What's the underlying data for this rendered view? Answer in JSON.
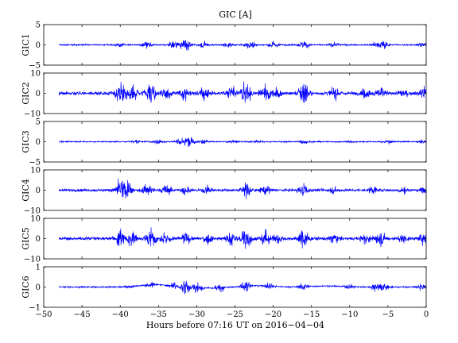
{
  "chart_data": {
    "type": "line",
    "title": "GIC [A]",
    "xlabel": "Hours before  07:16 UT on 2016−04−04",
    "xlim": [
      -50,
      0
    ],
    "x_ticks": [
      -50,
      -45,
      -40,
      -35,
      -30,
      -25,
      -20,
      -15,
      -10,
      -5,
      0
    ],
    "data_x_range": [
      -48,
      0
    ],
    "line_color": "#0000ff",
    "panels": [
      {
        "name": "GIC1",
        "ylim": [
          -5,
          5
        ],
        "y_ticks": [
          -5,
          0,
          5
        ],
        "baseline": 0,
        "noise": 0.12,
        "bursts": [
          {
            "x": -40,
            "amp": 0.6
          },
          {
            "x": -36.5,
            "amp": 1.0
          },
          {
            "x": -33,
            "amp": 1.2
          },
          {
            "x": -31.5,
            "amp": 2.0
          },
          {
            "x": -29,
            "amp": 1.0
          },
          {
            "x": -26,
            "amp": 0.9
          },
          {
            "x": -23,
            "amp": 1.5
          },
          {
            "x": -20,
            "amp": 1.2
          },
          {
            "x": -16,
            "amp": 1.3
          },
          {
            "x": -12,
            "amp": 0.8
          },
          {
            "x": -6.5,
            "amp": 1.0
          },
          {
            "x": -5.5,
            "amp": 1.3
          },
          {
            "x": -0.5,
            "amp": 0.8
          }
        ]
      },
      {
        "name": "GIC2",
        "ylim": [
          -10,
          10
        ],
        "y_ticks": [
          -10,
          0,
          10
        ],
        "baseline": 0,
        "noise": 0.6,
        "bursts": [
          {
            "x": -40,
            "amp": 7.0
          },
          {
            "x": -38.5,
            "amp": 5.0
          },
          {
            "x": -36,
            "amp": 6.5
          },
          {
            "x": -34,
            "amp": 5.0
          },
          {
            "x": -31.5,
            "amp": 4.5
          },
          {
            "x": -29,
            "amp": 4.0
          },
          {
            "x": -25.5,
            "amp": 4.5
          },
          {
            "x": -23.5,
            "amp": 7.5
          },
          {
            "x": -21,
            "amp": 5.5
          },
          {
            "x": -19.5,
            "amp": 4.0
          },
          {
            "x": -16,
            "amp": 8.0
          },
          {
            "x": -12,
            "amp": 3.5
          },
          {
            "x": -8,
            "amp": 3.5
          },
          {
            "x": -6,
            "amp": 4.5
          },
          {
            "x": -3,
            "amp": 3.0
          },
          {
            "x": -0.3,
            "amp": 4.0
          }
        ]
      },
      {
        "name": "GIC3",
        "ylim": [
          -5,
          5
        ],
        "y_ticks": [
          -5,
          0,
          5
        ],
        "baseline": 0,
        "noise": 0.1,
        "bursts": [
          {
            "x": -38,
            "amp": 0.5
          },
          {
            "x": -35,
            "amp": 0.7
          },
          {
            "x": -32,
            "amp": 1.3
          },
          {
            "x": -31,
            "amp": 1.8
          },
          {
            "x": -29,
            "amp": 0.7
          },
          {
            "x": -25,
            "amp": 0.6
          },
          {
            "x": -22,
            "amp": 0.6
          },
          {
            "x": -16,
            "amp": 0.7
          },
          {
            "x": -10,
            "amp": 0.4
          },
          {
            "x": -5,
            "amp": 0.6
          },
          {
            "x": -0.5,
            "amp": 0.6
          }
        ]
      },
      {
        "name": "GIC4",
        "ylim": [
          -10,
          10
        ],
        "y_ticks": [
          -10,
          0,
          10
        ],
        "baseline": 0,
        "noise": 0.45,
        "bursts": [
          {
            "x": -40,
            "amp": 6.5
          },
          {
            "x": -39,
            "amp": 5.0
          },
          {
            "x": -36.5,
            "amp": 4.5
          },
          {
            "x": -34,
            "amp": 3.5
          },
          {
            "x": -31.5,
            "amp": 3.0
          },
          {
            "x": -28.5,
            "amp": 3.0
          },
          {
            "x": -23.5,
            "amp": 5.0
          },
          {
            "x": -21,
            "amp": 3.5
          },
          {
            "x": -16,
            "amp": 4.5
          },
          {
            "x": -12,
            "amp": 2.5
          },
          {
            "x": -7,
            "amp": 2.5
          },
          {
            "x": -3,
            "amp": 2.5
          },
          {
            "x": -0.5,
            "amp": 2.0
          }
        ]
      },
      {
        "name": "GIC5",
        "ylim": [
          -10,
          10
        ],
        "y_ticks": [
          -10,
          0,
          10
        ],
        "baseline": 0,
        "noise": 0.55,
        "bursts": [
          {
            "x": -40,
            "amp": 7.0
          },
          {
            "x": -38.5,
            "amp": 5.0
          },
          {
            "x": -36,
            "amp": 6.5
          },
          {
            "x": -34,
            "amp": 5.0
          },
          {
            "x": -31.5,
            "amp": 4.0
          },
          {
            "x": -28.5,
            "amp": 3.5
          },
          {
            "x": -25.5,
            "amp": 4.5
          },
          {
            "x": -23.5,
            "amp": 7.5
          },
          {
            "x": -21,
            "amp": 5.0
          },
          {
            "x": -19.5,
            "amp": 4.0
          },
          {
            "x": -16,
            "amp": 6.0
          },
          {
            "x": -12,
            "amp": 3.5
          },
          {
            "x": -8,
            "amp": 3.5
          },
          {
            "x": -6,
            "amp": 4.5
          },
          {
            "x": -3,
            "amp": 3.0
          },
          {
            "x": -0.3,
            "amp": 4.0
          }
        ]
      },
      {
        "name": "GIC6",
        "ylim": [
          -1,
          1
        ],
        "y_ticks": [
          -1,
          0,
          1
        ],
        "baseline": 0,
        "noise": 0.025,
        "drift": [
          {
            "x": -35.5,
            "amp": 0.12,
            "width": 2.5
          },
          {
            "x": -28,
            "amp": -0.04,
            "width": 3.0
          },
          {
            "x": -22,
            "amp": 0.07,
            "width": 2.5
          },
          {
            "x": -13,
            "amp": 0.05,
            "width": 3.0
          }
        ],
        "bursts": [
          {
            "x": -39,
            "amp": 0.12
          },
          {
            "x": -36,
            "amp": 0.2
          },
          {
            "x": -33,
            "amp": 0.25
          },
          {
            "x": -31.5,
            "amp": 0.4
          },
          {
            "x": -30,
            "amp": 0.35
          },
          {
            "x": -27,
            "amp": 0.25
          },
          {
            "x": -23.5,
            "amp": 0.35
          },
          {
            "x": -20.5,
            "amp": 0.2
          },
          {
            "x": -16,
            "amp": 0.25
          },
          {
            "x": -10,
            "amp": 0.15
          },
          {
            "x": -6.5,
            "amp": 0.3
          },
          {
            "x": -5.5,
            "amp": 0.25
          },
          {
            "x": -0.5,
            "amp": 0.2
          }
        ]
      }
    ]
  }
}
